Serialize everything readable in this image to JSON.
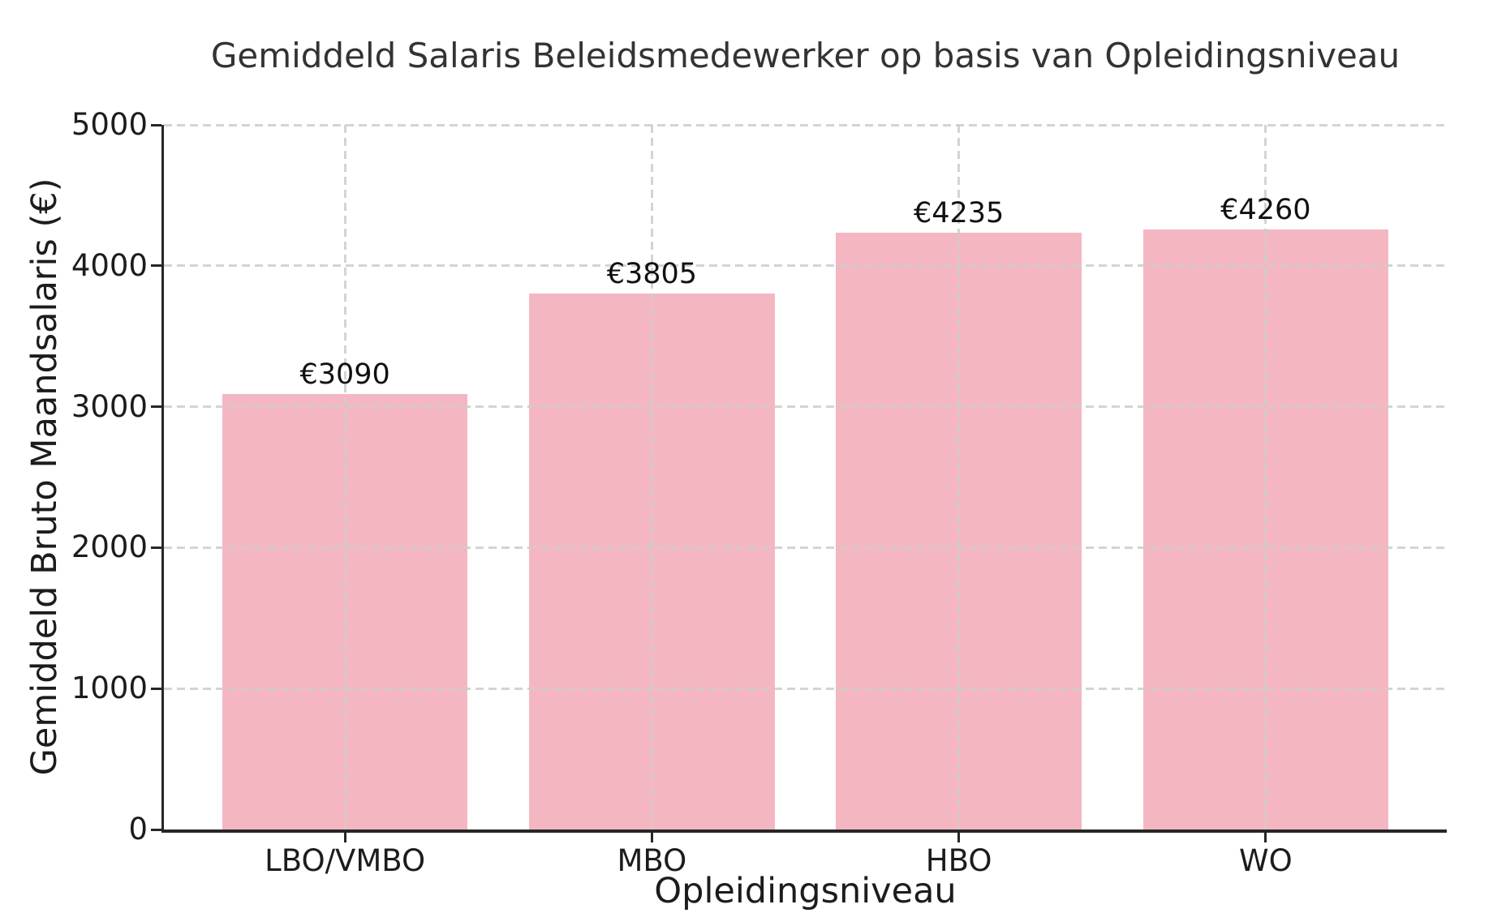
{
  "chart_data": {
    "type": "bar",
    "title": "Gemiddeld Salaris Beleidsmedewerker op basis van Opleidingsniveau",
    "xlabel": "Opleidingsniveau",
    "ylabel": "Gemiddeld Bruto Maandsalaris (€)",
    "categories": [
      "LBO/VMBO",
      "MBO",
      "HBO",
      "WO"
    ],
    "values": [
      3090,
      3805,
      4235,
      4260
    ],
    "bar_labels": [
      "€3090",
      "€3805",
      "€4235",
      "€4260"
    ],
    "ylim": [
      0,
      5000
    ],
    "yticks": [
      0,
      1000,
      2000,
      3000,
      4000,
      5000
    ],
    "grid": "dashed horizontal lines at y ticks and dashed vertical lines at bar centers, drawn over bars",
    "legend": "none",
    "colors": {
      "bar": "#f4b7c2",
      "grid": "#cccccc",
      "axis": "#262626",
      "tick_text": "#1c1c1c",
      "title_text": "#333333",
      "background": "#ffffff"
    }
  }
}
